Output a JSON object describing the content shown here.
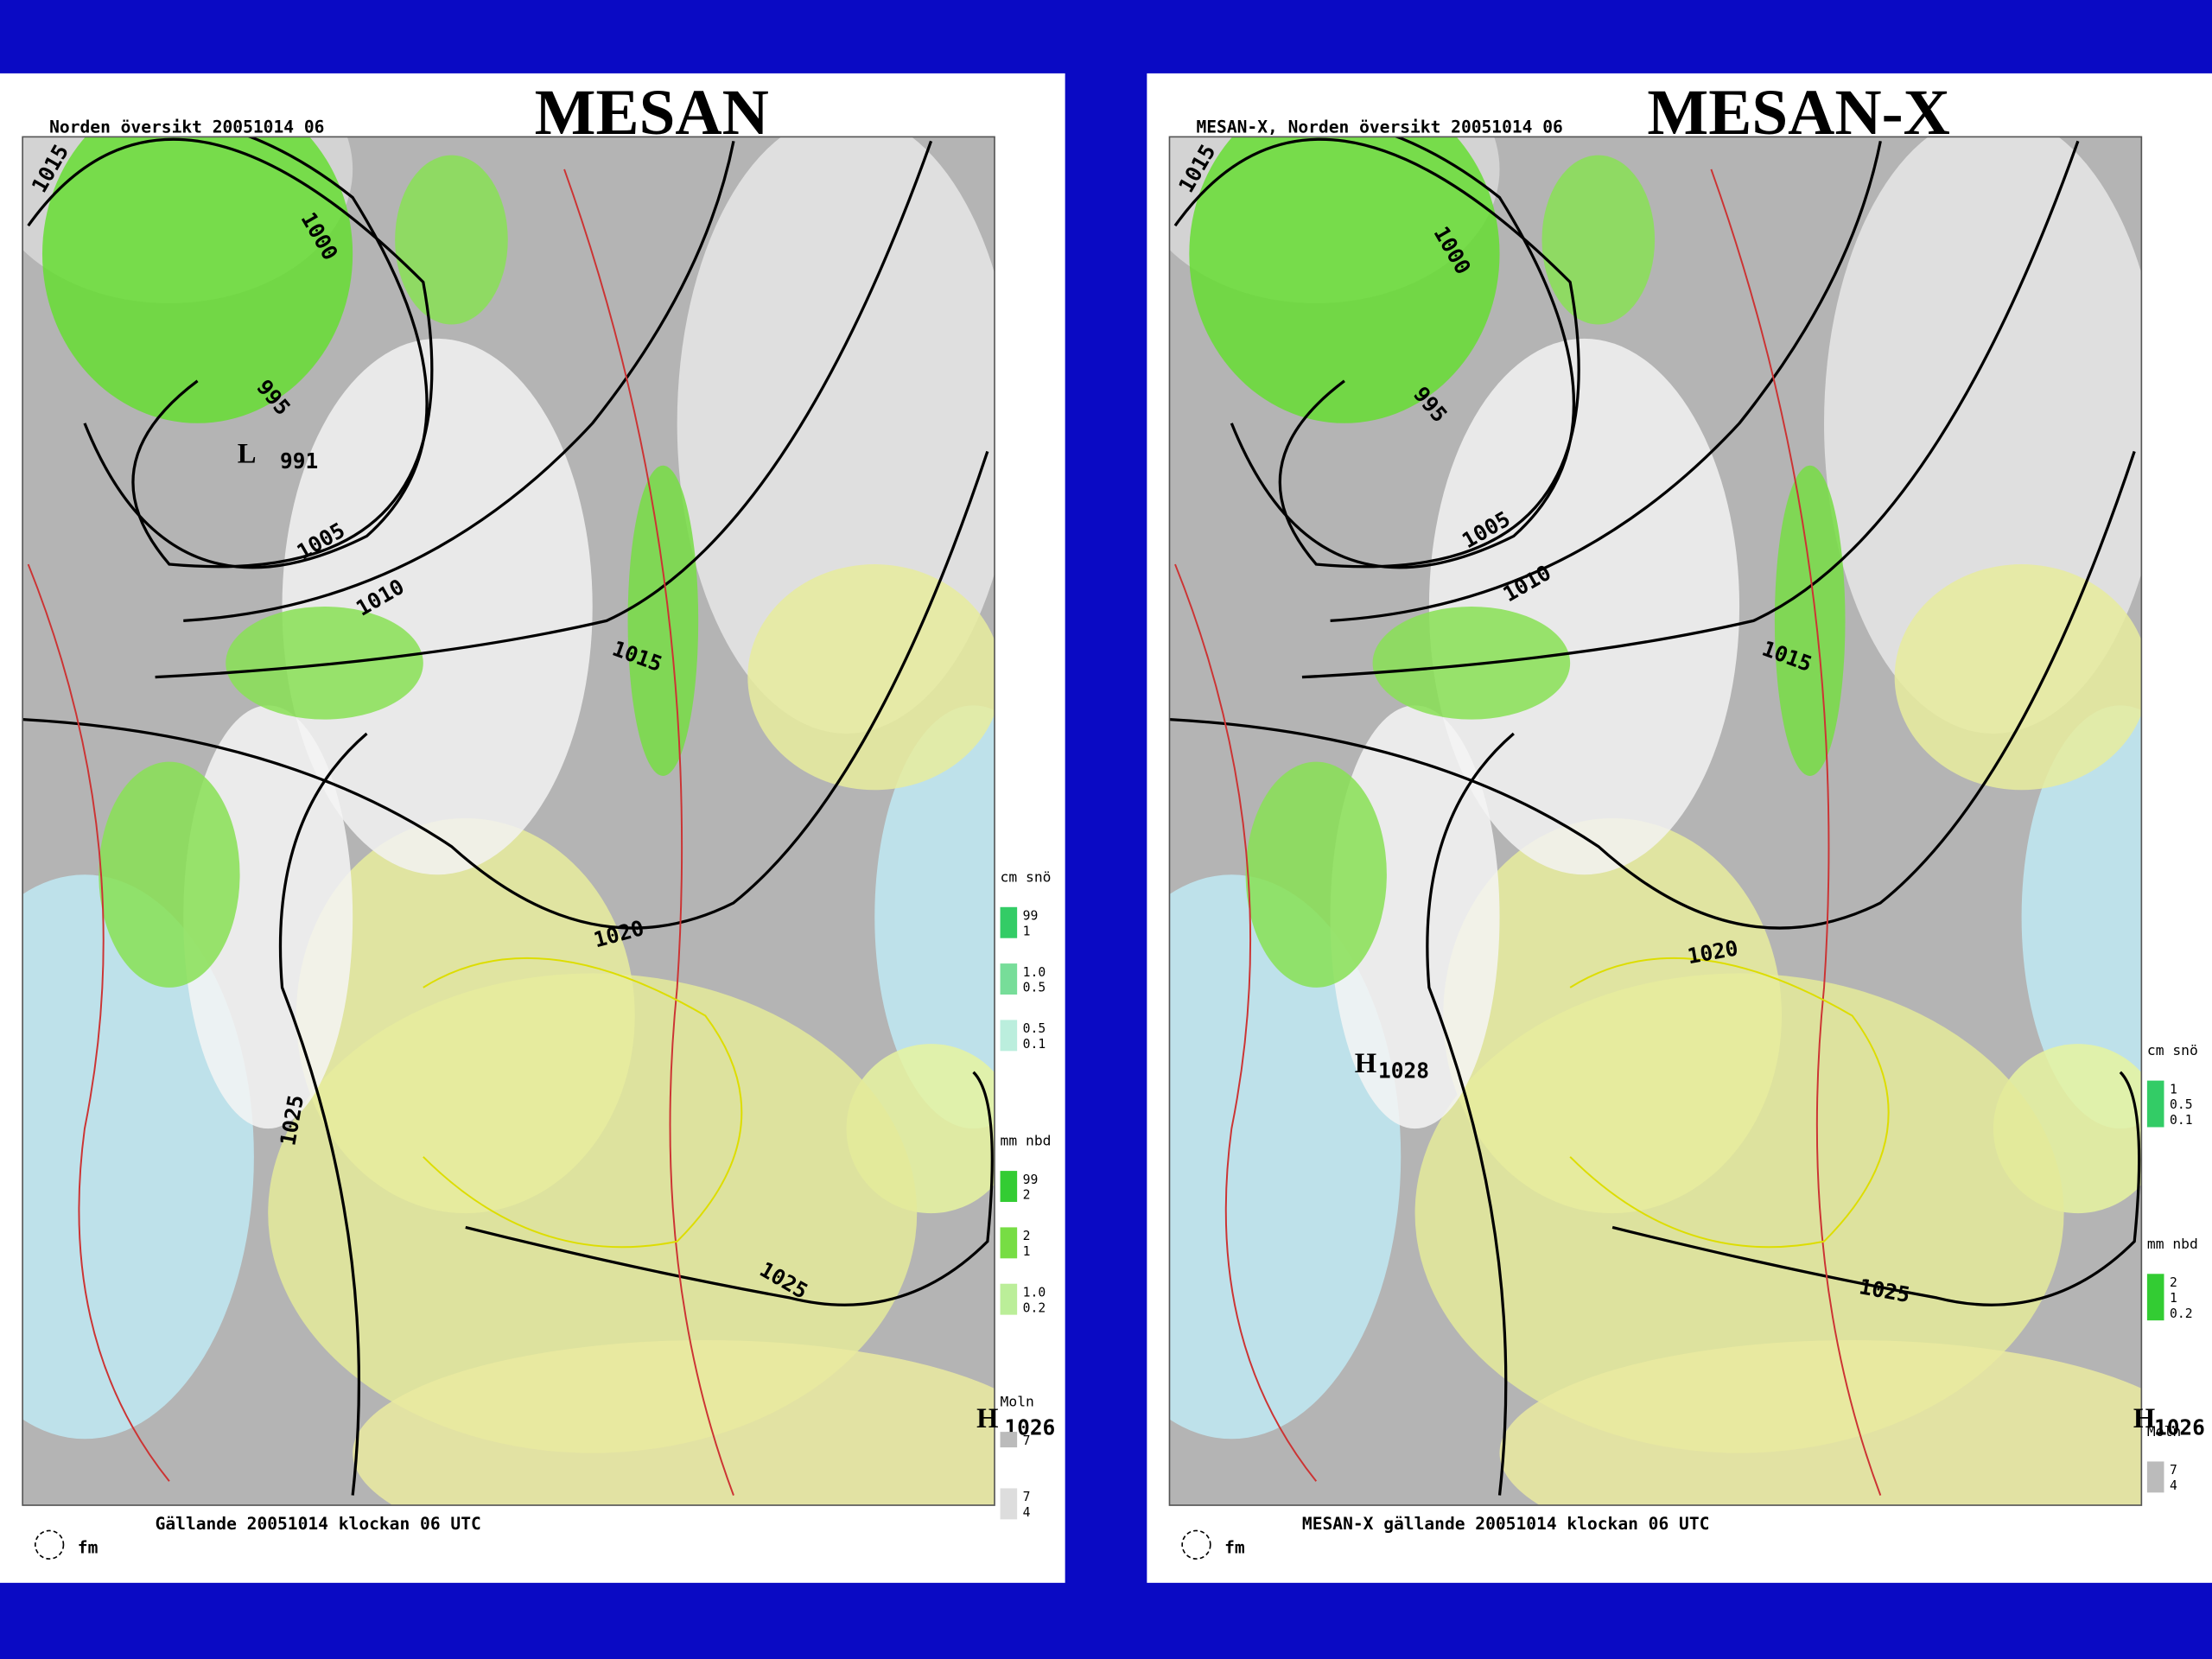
{
  "slide": {
    "panels": [
      {
        "title": "MESAN",
        "header": "Norden översikt 20051014 06",
        "footer": "Gällande 20051014 klockan 06 UTC",
        "logo": "fm",
        "isobar_labels": [
          "1015",
          "1000",
          "995",
          "L",
          "991",
          "1005",
          "1010",
          "1015",
          "1020",
          "1025",
          "1025",
          "H",
          "1026"
        ],
        "legend": [
          {
            "title": "cm snö",
            "groups": [
              [
                "99",
                "1"
              ],
              [
                "1.0",
                "0.5"
              ],
              [
                "0.5",
                "0.1"
              ]
            ]
          },
          {
            "title": "mm nbd",
            "groups": [
              [
                "99",
                "2"
              ],
              [
                "2",
                "1"
              ],
              [
                "1.0",
                "0.2"
              ]
            ]
          },
          {
            "title": "Moln",
            "groups": [
              [
                "7"
              ],
              [
                "7",
                "4"
              ]
            ]
          }
        ]
      },
      {
        "title": "MESAN-X",
        "header": "MESAN-X, Norden översikt 20051014 06",
        "footer": "MESAN-X gällande 20051014 klockan 06 UTC",
        "logo": "fm",
        "isobar_labels": [
          "1015",
          "1000",
          "995",
          "1005",
          "1010",
          "1015",
          "1020",
          "H",
          "1028",
          "1025",
          "H",
          "1026"
        ],
        "legend": [
          {
            "title": "cm snö",
            "groups": [
              [
                "1",
                "0.5",
                "0.1"
              ]
            ]
          },
          {
            "title": "mm nbd",
            "groups": [
              [
                "2",
                "1",
                "0.2"
              ]
            ]
          },
          {
            "title": "Moln",
            "groups": [
              [
                "7",
                "4"
              ]
            ]
          }
        ]
      }
    ]
  }
}
